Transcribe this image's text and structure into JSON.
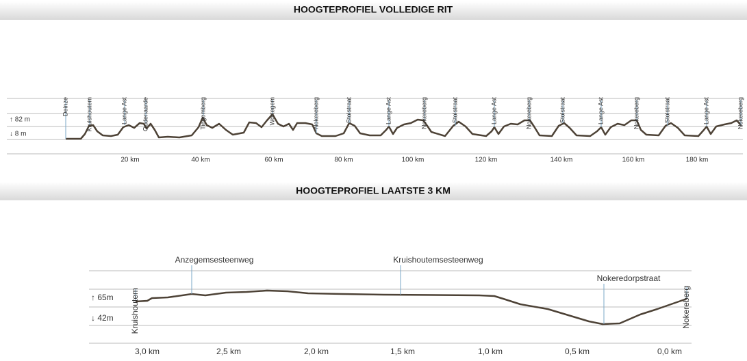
{
  "full": {
    "title": "HOOGTEPROFIEL VOLLEDIGE RIT",
    "max": "↑ 82 m",
    "min": "↓ 8 m",
    "km": [
      "20 km",
      "40 km",
      "60 km",
      "80 km",
      "100 km",
      "120 km",
      "140 km",
      "160 km",
      "180 km"
    ],
    "waypoints": [
      "Deinze",
      "Kruishoutem",
      "Lange Ast",
      "Oudenaarde",
      "Tiegemberg",
      "Wortegem",
      "Nokereberg",
      "Stolstraat",
      "Lange Ast",
      "Nokereberg",
      "Stolstraat",
      "Lange Ast",
      "Nokereberg",
      "Stolstraat",
      "Lange Ast",
      "Nokereberg",
      "Stolstraat",
      "Lange Ast",
      "Nokereberg"
    ]
  },
  "last": {
    "title": "HOOGTEPROFIEL LAATSTE 3 KM",
    "max": "↑ 65m",
    "min": "↓ 42m",
    "km": [
      "3,0 km",
      "2,5 km",
      "2,0 km",
      "1,5 km",
      "1,0 km",
      "0,5 km",
      "0,0 km"
    ],
    "waypoints": [
      "Kruishoutem",
      "Anzegemsesteenweg",
      "Kruishoutemsesteenweg",
      "Nokeredorpstraat",
      "Nokereberg"
    ]
  }
}
